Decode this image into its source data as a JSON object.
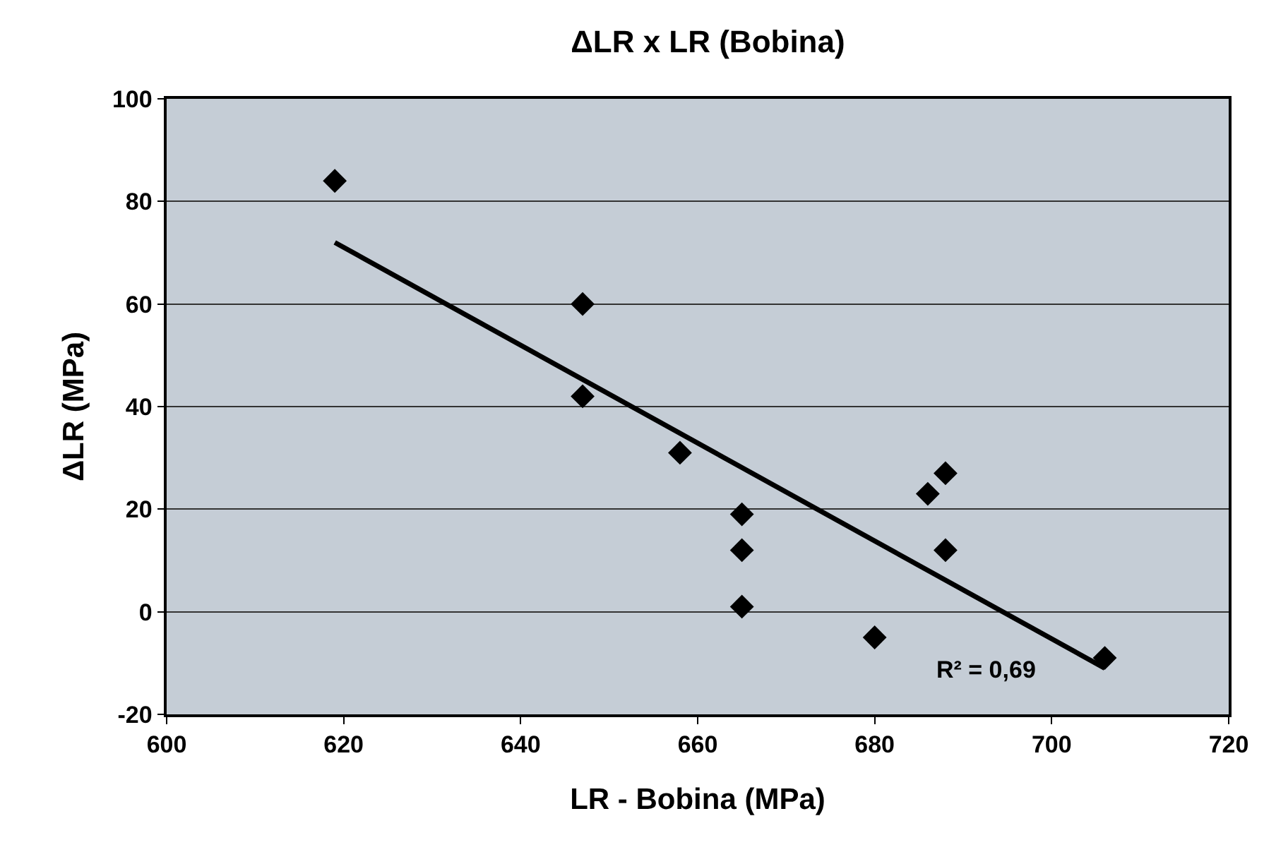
{
  "chart_data": {
    "type": "scatter",
    "title": "ΔLR x LR (Bobina)",
    "xlabel": "LR - Bobina (MPa)",
    "ylabel": "ΔLR (MPa)",
    "series": [
      {
        "color": "#000000",
        "marker": "diamond",
        "x": [
          619,
          647,
          647,
          658,
          665,
          665,
          665,
          680,
          686,
          688,
          688,
          706
        ],
        "values": [
          84,
          60,
          42,
          31,
          19,
          12,
          1,
          -5,
          23,
          27,
          12,
          -9
        ]
      },
      {
        "type": "line",
        "color": "#000000",
        "line_style": "solid",
        "marker": "none",
        "x": [
          619,
          706
        ],
        "values": [
          72,
          -11
        ]
      }
    ],
    "annotations": [
      "R² = 0,69"
    ],
    "xlim": [
      600,
      720
    ],
    "xticks": [
      600,
      620,
      640,
      660,
      680,
      700,
      720
    ],
    "ylim": [
      -20,
      100
    ],
    "yticks": [
      -20,
      0,
      20,
      40,
      60,
      80,
      100
    ],
    "grid": "y"
  }
}
